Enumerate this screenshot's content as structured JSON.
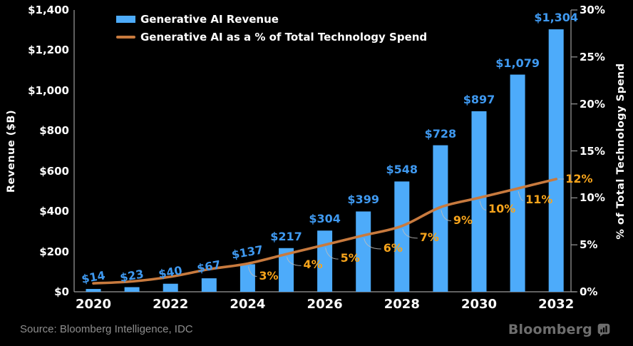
{
  "chart_data": {
    "type": "bar",
    "title": "",
    "categories": [
      "2020",
      "2021",
      "2022",
      "2023",
      "2024",
      "2025",
      "2026",
      "2027",
      "2028",
      "2029",
      "2030",
      "2031",
      "2032"
    ],
    "x_tick_labels": [
      "2020",
      "2022",
      "2024",
      "2026",
      "2028",
      "2030",
      "2032"
    ],
    "series": [
      {
        "name": "Generative AI Revenue",
        "type": "bar",
        "color": "#4DABFA",
        "label_color": "#3F99F0",
        "values": [
          14,
          23,
          40,
          67,
          137,
          217,
          304,
          399,
          548,
          728,
          897,
          1079,
          1304
        ],
        "labels": [
          "$14",
          "$23",
          "$40",
          "$67",
          "$137",
          "$217",
          "$304",
          "$399",
          "$548",
          "$728",
          "$897",
          "$1,079",
          "$1,304"
        ]
      },
      {
        "name": "Generative AI as a % of Total Technology Spend",
        "type": "line",
        "color": "#C87A3E",
        "label_color": "#F7A41B",
        "values": [
          0.9,
          1.1,
          1.6,
          2.4,
          3,
          4,
          5,
          6,
          7,
          9,
          10,
          11,
          12
        ],
        "labels": [
          null,
          null,
          null,
          null,
          "3%",
          "4%",
          "5%",
          "6%",
          "7%",
          "9%",
          "10%",
          "11%",
          "12%"
        ]
      }
    ],
    "ylabel_left": "Revenue ($B)",
    "ylim_left": [
      0,
      1400
    ],
    "yticks_left": [
      "$1,400",
      "$1,200",
      "$1,000",
      "$800",
      "$600",
      "$400",
      "$200",
      "$0"
    ],
    "ylabel_right": "% of Total Technology Spend",
    "ylim_right": [
      0,
      30
    ],
    "yticks_right": [
      "30%",
      "25%",
      "20%",
      "15%",
      "10%",
      "5%",
      "0%"
    ],
    "legend_position": "top-left",
    "grid": "off"
  },
  "colors": {
    "background": "#000000",
    "axis": "#9b9b9b",
    "leader": "#bcbcbc",
    "text_white": "#ffffff",
    "source_gray": "#8e8e8e",
    "logo_gray": "#6e6e6e"
  },
  "footer": {
    "source": "Source: Bloomberg Intelligence, IDC",
    "logo_text": "Bloomberg"
  }
}
